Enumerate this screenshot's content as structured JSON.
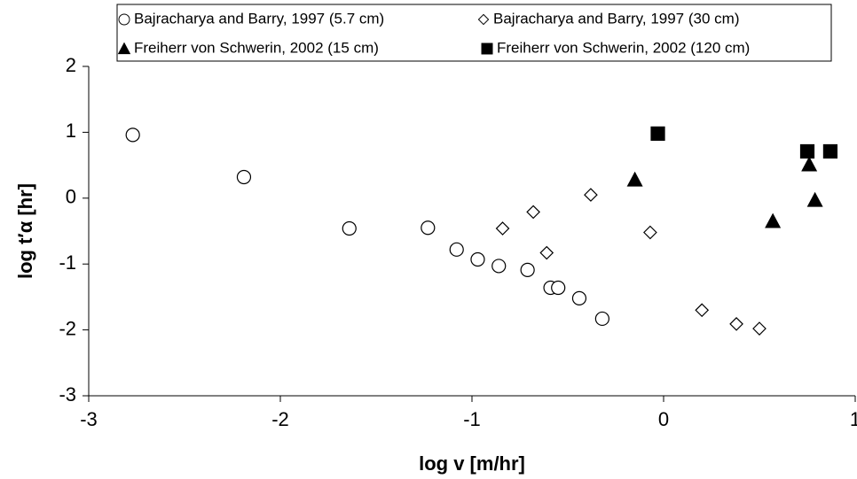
{
  "chart_data": {
    "type": "scatter",
    "xlabel": "log v  [m/hr]",
    "ylabel": "log t′α [hr]",
    "xlim": [
      -3,
      1
    ],
    "xticks": [
      -3,
      -2,
      -1,
      0,
      1
    ],
    "ylim": [
      -3,
      2
    ],
    "yticks": [
      -3,
      -2,
      -1,
      0,
      1,
      2
    ],
    "grid": false,
    "legend": "top",
    "series": [
      {
        "name": "Bajracharya and Barry, 1997 (5.7 cm)",
        "color": "#000000",
        "marker": "circle-open",
        "x": [
          -2.77,
          -2.19,
          -1.64,
          -1.23,
          -1.08,
          -0.97,
          -0.86,
          -0.71,
          -0.59,
          -0.55,
          -0.44,
          -0.32
        ],
        "values": [
          0.96,
          0.32,
          -0.46,
          -0.45,
          -0.78,
          -0.93,
          -1.03,
          -1.09,
          -1.36,
          -1.36,
          -1.52,
          -1.83
        ]
      },
      {
        "name": "Bajracharya and Barry, 1997 (30 cm)",
        "color": "#000000",
        "marker": "diamond-open",
        "x": [
          -0.84,
          -0.68,
          -0.61,
          -0.38,
          -0.07,
          0.2,
          0.38,
          0.5
        ],
        "values": [
          -0.46,
          -0.21,
          -0.83,
          0.05,
          -0.52,
          -1.7,
          -1.91,
          -1.98
        ]
      },
      {
        "name": "Freiherr von Schwerin, 2002 (15 cm)",
        "color": "#000000",
        "marker": "triangle",
        "x": [
          -0.15,
          0.57,
          0.76,
          0.79
        ],
        "values": [
          0.28,
          -0.35,
          0.51,
          -0.03
        ]
      },
      {
        "name": "Freiherr von Schwerin, 2002 (120 cm)",
        "color": "#000000",
        "marker": "square",
        "x": [
          -0.03,
          0.75,
          0.87
        ],
        "values": [
          0.98,
          0.71,
          0.71
        ]
      }
    ]
  }
}
